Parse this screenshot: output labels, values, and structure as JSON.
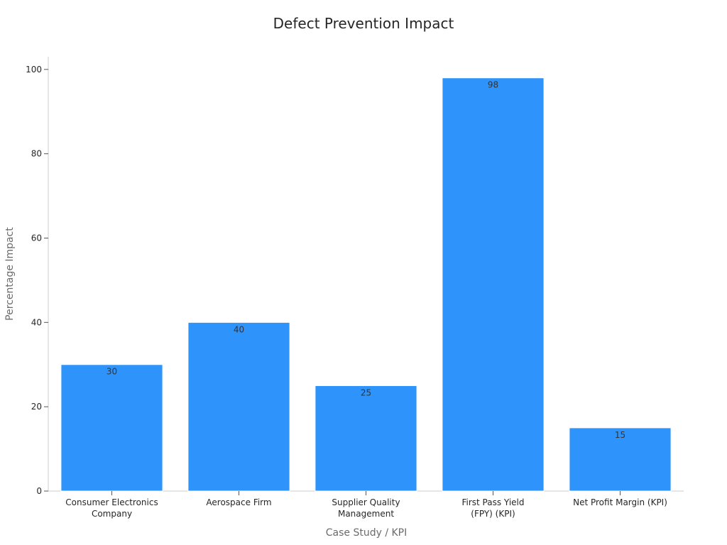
{
  "chart_data": {
    "type": "bar",
    "title": "Defect Prevention Impact",
    "xlabel": "Case Study / KPI",
    "ylabel": "Percentage Impact",
    "categories": [
      [
        "Consumer Electronics",
        "Company"
      ],
      [
        "Aerospace Firm"
      ],
      [
        "Supplier Quality",
        "Management"
      ],
      [
        "First Pass Yield",
        "(FPY) (KPI)"
      ],
      [
        "Net Profit Margin (KPI)"
      ]
    ],
    "values": [
      30,
      40,
      25,
      98,
      15
    ],
    "value_labels": [
      "30",
      "40",
      "25",
      "98",
      "15"
    ],
    "ylim": [
      0,
      103
    ],
    "yticks": [
      0,
      20,
      40,
      60,
      80,
      100
    ],
    "ytick_labels": [
      "0",
      "20",
      "40",
      "60",
      "80",
      "100"
    ],
    "grid": false,
    "bar_color": "#2e93fa",
    "bar_edge_color": "#ffffff"
  }
}
